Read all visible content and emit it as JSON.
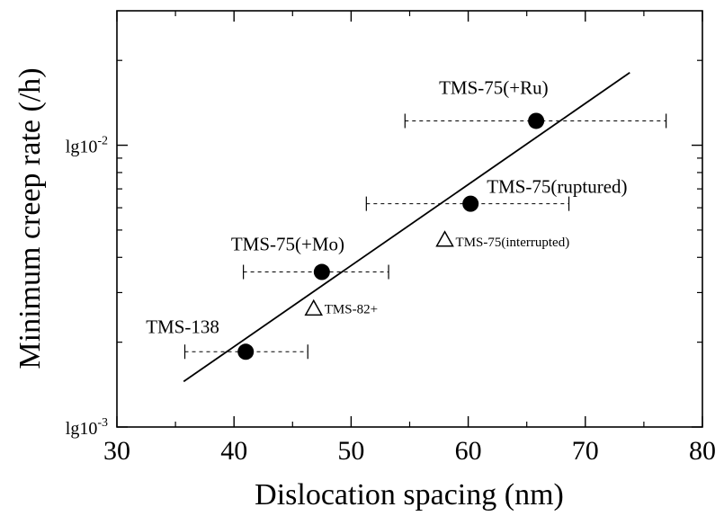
{
  "chart_data": {
    "type": "scatter",
    "title": "",
    "xlabel": "Dislocation spacing (nm)",
    "ylabel": "Minimum creep rate (/h)",
    "xlim": [
      30,
      80
    ],
    "ylim": [
      0.001,
      0.03
    ],
    "yscale": "log",
    "x_ticks": [
      30,
      40,
      50,
      60,
      70,
      80
    ],
    "x_tick_labels": [
      "30",
      "40",
      "50",
      "60",
      "70",
      "80"
    ],
    "y_ticks": [
      0.001,
      0.01
    ],
    "y_tick_labels": [
      {
        "base": "lg10",
        "exp": "-3"
      },
      {
        "base": "lg10",
        "exp": "-2"
      }
    ],
    "grid": false,
    "legend": null,
    "series": [
      {
        "marker": "filled-circle",
        "points": [
          {
            "label": "TMS-138",
            "x": 41.0,
            "y": 0.00185,
            "xerr_low": 35.8,
            "xerr_high": 46.3
          },
          {
            "label": "TMS-75(+Mo)",
            "x": 47.5,
            "y": 0.00355,
            "xerr_low": 40.8,
            "xerr_high": 53.2
          },
          {
            "label": "TMS-75(ruptured)",
            "x": 60.2,
            "y": 0.0062,
            "xerr_low": 51.3,
            "xerr_high": 68.6
          },
          {
            "label": "TMS-75(+Ru)",
            "x": 65.8,
            "y": 0.0122,
            "xerr_low": 54.6,
            "xerr_high": 76.9
          }
        ]
      },
      {
        "marker": "open-triangle",
        "points": [
          {
            "label": "TMS-82+",
            "x": 46.8,
            "y": 0.00265
          },
          {
            "label": "TMS-75(interrupted)",
            "x": 58.0,
            "y": 0.00465
          }
        ]
      }
    ],
    "fit_line": {
      "x": [
        35.7,
        73.8
      ],
      "y": [
        0.00145,
        0.0181
      ]
    }
  }
}
